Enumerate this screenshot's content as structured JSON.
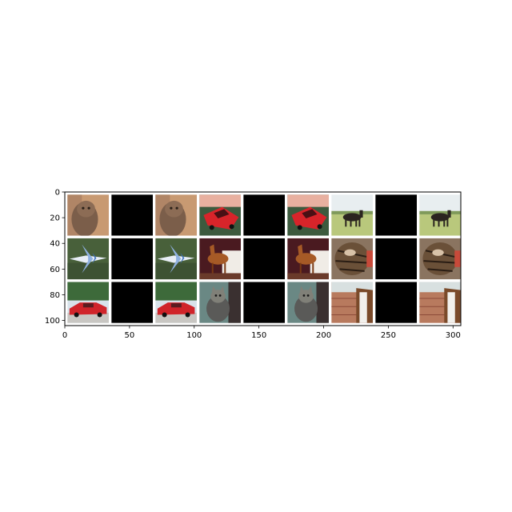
{
  "chart_data": {
    "type": "image_grid",
    "title": "",
    "xlabel": "",
    "ylabel": "",
    "xlim": [
      0,
      306
    ],
    "ylim": [
      104,
      0
    ],
    "xticks": [
      0,
      50,
      100,
      150,
      200,
      250,
      300
    ],
    "yticks": [
      0,
      20,
      40,
      60,
      80,
      100
    ],
    "xtick_labels": [
      "0",
      "50",
      "100",
      "150",
      "200",
      "250",
      "300"
    ],
    "ytick_labels": [
      "0",
      "20",
      "40",
      "60",
      "80",
      "100"
    ],
    "tile_size": 32,
    "tile_gap": 2,
    "rows": [
      [
        {
          "subject": "cat"
        },
        {
          "subject": "blank"
        },
        {
          "subject": "cat"
        },
        {
          "subject": "red-car"
        },
        {
          "subject": "blank"
        },
        {
          "subject": "red-car"
        },
        {
          "subject": "horse-field"
        },
        {
          "subject": "blank"
        },
        {
          "subject": "horse-field"
        }
      ],
      [
        {
          "subject": "airplane"
        },
        {
          "subject": "blank"
        },
        {
          "subject": "airplane"
        },
        {
          "subject": "brown-horse"
        },
        {
          "subject": "blank"
        },
        {
          "subject": "brown-horse"
        },
        {
          "subject": "tabby-cat"
        },
        {
          "subject": "blank"
        },
        {
          "subject": "tabby-cat"
        }
      ],
      [
        {
          "subject": "red-car-street"
        },
        {
          "subject": "blank"
        },
        {
          "subject": "red-car-street"
        },
        {
          "subject": "grey-cat"
        },
        {
          "subject": "blank"
        },
        {
          "subject": "grey-cat"
        },
        {
          "subject": "horse-face"
        },
        {
          "subject": "blank"
        },
        {
          "subject": "horse-face"
        }
      ]
    ]
  }
}
